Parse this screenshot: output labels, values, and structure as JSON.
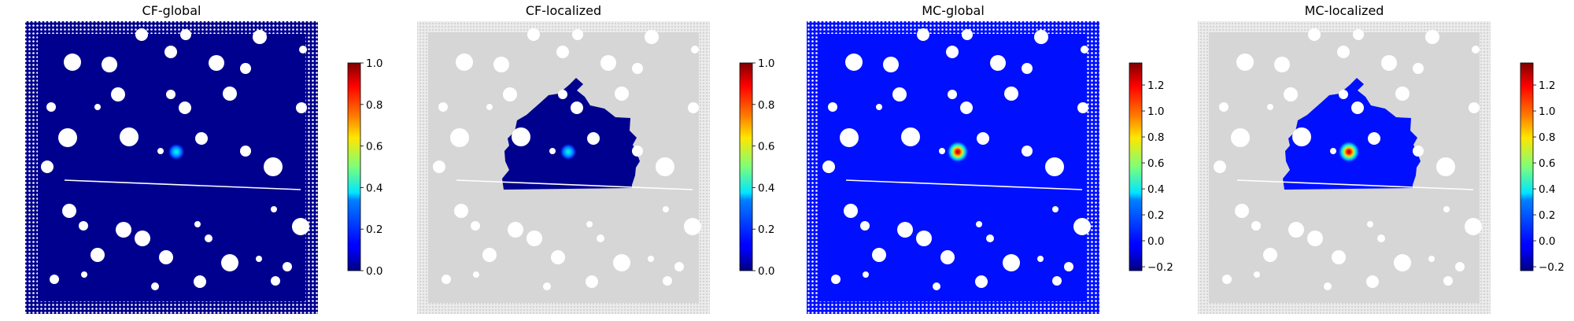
{
  "chart_data": [
    {
      "type": "heatmap",
      "title": "CF-global",
      "colormap": "jet",
      "colorbar_ticks": [
        "0.0",
        "0.2",
        "0.4",
        "0.6",
        "0.8",
        "1.0"
      ],
      "colorbar_range": [
        0.0,
        1.0
      ],
      "region": "global",
      "background_color": "#00008f",
      "peak_value": 0.6
    },
    {
      "type": "heatmap",
      "title": "CF-localized",
      "colormap": "jet",
      "colorbar_ticks": [
        "0.0",
        "0.2",
        "0.4",
        "0.6",
        "0.8",
        "1.0"
      ],
      "colorbar_range": [
        0.0,
        1.0
      ],
      "region": "localized",
      "background_color": "#00008f",
      "peak_value": 0.6
    },
    {
      "type": "heatmap",
      "title": "MC-global",
      "colormap": "jet",
      "colorbar_ticks": [
        "−0.2",
        "0.0",
        "0.2",
        "0.4",
        "0.6",
        "0.8",
        "1.0",
        "1.2"
      ],
      "colorbar_range": [
        -0.23,
        1.37
      ],
      "region": "global",
      "background_color": "#0010ff",
      "peak_value": 1.3
    },
    {
      "type": "heatmap",
      "title": "MC-localized",
      "colormap": "jet",
      "colorbar_ticks": [
        "−0.2",
        "0.0",
        "0.2",
        "0.4",
        "0.6",
        "0.8",
        "1.0",
        "1.2"
      ],
      "colorbar_range": [
        -0.23,
        1.37
      ],
      "region": "localized",
      "background_color": "#0010ff",
      "peak_value": 1.3
    }
  ]
}
